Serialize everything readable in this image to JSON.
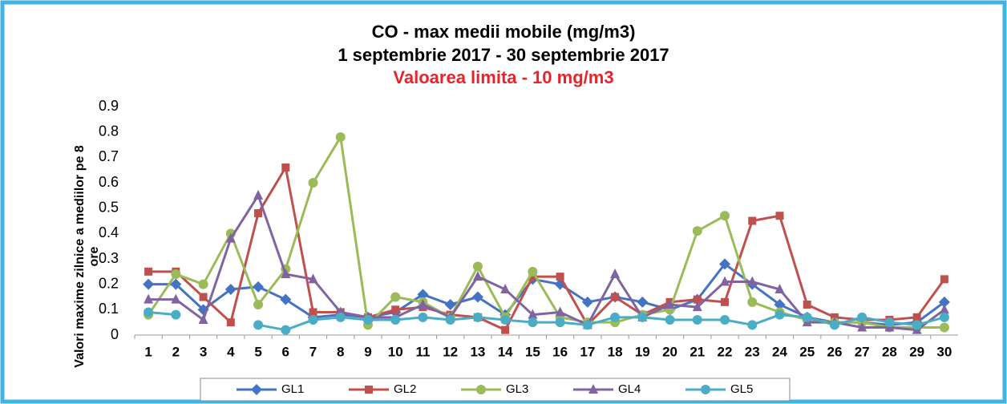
{
  "chart_data": {
    "type": "line",
    "title": "CO - max medii mobile (mg/m3)",
    "subtitle": "1 septembrie 2017 - 30 septembrie 2017",
    "note": "Valoarea limita - 10 mg/m3",
    "note_color": "#e8242a",
    "y_label": [
      "Valori maxime zilnice a mediilor pe 8",
      "ore"
    ],
    "categories": [
      "1",
      "2",
      "3",
      "4",
      "5",
      "6",
      "7",
      "8",
      "9",
      "10",
      "11",
      "12",
      "13",
      "14",
      "15",
      "16",
      "17",
      "18",
      "19",
      "20",
      "21",
      "22",
      "23",
      "24",
      "25",
      "26",
      "27",
      "28",
      "29",
      "30"
    ],
    "series": [
      {
        "name": "GL1",
        "color": "#4472c4",
        "marker": "diamond",
        "values": [
          0.2,
          0.2,
          0.1,
          0.18,
          0.19,
          0.14,
          0.07,
          0.08,
          0.07,
          0.09,
          0.16,
          0.12,
          0.15,
          0.08,
          0.22,
          0.2,
          0.13,
          0.15,
          0.13,
          0.1,
          0.14,
          0.28,
          0.2,
          0.12,
          0.07,
          0.05,
          0.05,
          0.04,
          0.05,
          0.13
        ]
      },
      {
        "name": "GL2",
        "color": "#c0504d",
        "marker": "square",
        "values": [
          0.25,
          0.25,
          0.15,
          0.05,
          0.48,
          0.66,
          0.09,
          0.09,
          0.07,
          0.1,
          0.11,
          0.08,
          0.07,
          0.02,
          0.23,
          0.23,
          0.04,
          0.15,
          0.08,
          0.13,
          0.14,
          0.13,
          0.45,
          0.47,
          0.12,
          0.07,
          0.06,
          0.06,
          0.07,
          0.22
        ]
      },
      {
        "name": "GL3",
        "color": "#9bbb59",
        "marker": "circle",
        "values": [
          0.08,
          0.24,
          0.2,
          0.4,
          0.12,
          0.26,
          0.6,
          0.78,
          0.04,
          0.15,
          0.13,
          0.07,
          0.27,
          0.07,
          0.25,
          0.07,
          0.05,
          0.05,
          0.08,
          0.1,
          0.41,
          0.47,
          0.13,
          0.09,
          0.06,
          0.05,
          0.05,
          0.03,
          0.03,
          0.03
        ]
      },
      {
        "name": "GL4",
        "color": "#8064a2",
        "marker": "triangle",
        "values": [
          0.14,
          0.14,
          0.06,
          0.38,
          0.55,
          0.24,
          0.22,
          0.09,
          0.07,
          0.07,
          0.12,
          0.07,
          0.23,
          0.18,
          0.08,
          0.09,
          0.04,
          0.24,
          0.07,
          0.12,
          0.11,
          0.21,
          0.21,
          0.18,
          0.05,
          0.05,
          0.03,
          0.03,
          0.02,
          0.1
        ]
      },
      {
        "name": "GL5",
        "color": "#4bacc6",
        "marker": "circle",
        "values": [
          0.09,
          0.08,
          null,
          null,
          0.04,
          0.02,
          0.06,
          0.07,
          0.06,
          0.06,
          0.07,
          0.06,
          0.07,
          0.06,
          0.05,
          0.05,
          0.04,
          0.07,
          0.07,
          0.06,
          0.06,
          0.06,
          0.04,
          0.08,
          0.07,
          0.04,
          0.07,
          0.05,
          0.04,
          0.07
        ]
      }
    ],
    "ylim": [
      0,
      0.9
    ],
    "yticks": [
      0,
      0.1,
      0.2,
      0.3,
      0.4,
      0.5,
      0.6,
      0.7,
      0.8,
      0.9
    ],
    "grid": false,
    "legend": "bottom"
  }
}
